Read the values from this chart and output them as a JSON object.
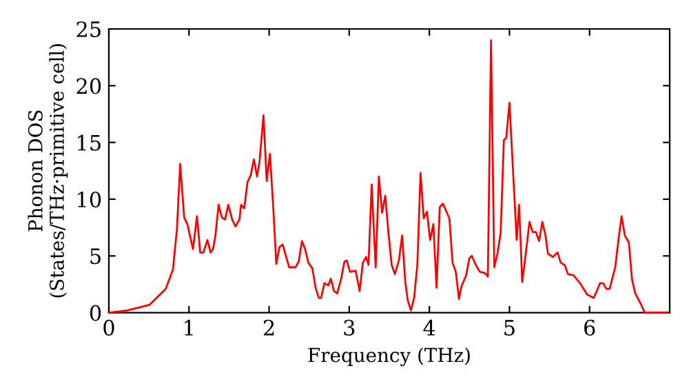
{
  "chart_data": {
    "type": "line",
    "xlabel": "Frequency (THz)",
    "ylabel": "Phonon DOS\n(States/THz·primitive cell)",
    "xlim": [
      0,
      7
    ],
    "ylim": [
      0,
      25
    ],
    "xticks": [
      0,
      1,
      2,
      3,
      4,
      5,
      6
    ],
    "yticks": [
      0,
      5,
      10,
      15,
      20,
      25
    ],
    "grid": false,
    "legend": false,
    "marker": "none",
    "line_style": "solid",
    "series": [
      {
        "color": "#ff0000",
        "x": [
          0,
          0.23,
          0.51,
          0.71,
          0.8,
          0.85,
          0.89,
          0.94,
          0.98,
          1.05,
          1.1,
          1.14,
          1.18,
          1.23,
          1.27,
          1.3,
          1.33,
          1.37,
          1.41,
          1.45,
          1.49,
          1.54,
          1.58,
          1.63,
          1.65,
          1.69,
          1.73,
          1.77,
          1.81,
          1.85,
          1.88,
          1.93,
          1.97,
          2.01,
          2.05,
          2.09,
          2.13,
          2.17,
          2.25,
          2.33,
          2.37,
          2.41,
          2.45,
          2.49,
          2.54,
          2.58,
          2.62,
          2.65,
          2.69,
          2.74,
          2.77,
          2.81,
          2.85,
          2.9,
          2.94,
          2.97,
          3.01,
          3.08,
          3.13,
          3.17,
          3.21,
          3.24,
          3.28,
          3.33,
          3.37,
          3.41,
          3.45,
          3.49,
          3.53,
          3.57,
          3.62,
          3.66,
          3.7,
          3.73,
          3.77,
          3.81,
          3.85,
          3.89,
          3.93,
          3.97,
          4.01,
          4.05,
          4.09,
          4.13,
          4.17,
          4.25,
          4.29,
          4.33,
          4.37,
          4.4,
          4.46,
          4.5,
          4.53,
          4.58,
          4.63,
          4.69,
          4.73,
          4.77,
          4.81,
          4.85,
          4.89,
          4.93,
          4.96,
          5.0,
          5.04,
          5.09,
          5.12,
          5.16,
          5.2,
          5.25,
          5.29,
          5.33,
          5.37,
          5.41,
          5.45,
          5.48,
          5.54,
          5.6,
          5.64,
          5.69,
          5.73,
          5.8,
          5.89,
          5.97,
          6.05,
          6.09,
          6.13,
          6.17,
          6.21,
          6.25,
          6.32,
          6.36,
          6.4,
          6.44,
          6.49,
          6.53,
          6.57,
          6.63,
          6.69,
          6.97
        ],
        "values": [
          0,
          0.2,
          0.7,
          2.1,
          3.8,
          7.4,
          13.1,
          8.4,
          7.8,
          5.6,
          8.5,
          5.3,
          5.3,
          6.4,
          5.3,
          5.6,
          6.8,
          9.5,
          8.4,
          8.2,
          9.5,
          8.2,
          7.6,
          8.2,
          9.5,
          9.2,
          11.5,
          12.1,
          13.5,
          12,
          13.3,
          17.4,
          11.6,
          14,
          9.5,
          4.3,
          5.8,
          6,
          4,
          4,
          4.5,
          6.3,
          5.6,
          4.4,
          3.9,
          2.2,
          1.3,
          1.3,
          2.6,
          2.4,
          3.0,
          1.9,
          1.7,
          3.0,
          4.5,
          4.6,
          3.6,
          3.7,
          1.9,
          4.4,
          4.9,
          4.2,
          11.3,
          4.0,
          12.0,
          8.8,
          10.3,
          7.0,
          4.2,
          3.4,
          4.6,
          6.8,
          2.7,
          1.1,
          0.2,
          1.3,
          4.2,
          12.3,
          8.3,
          8.9,
          6.4,
          7.8,
          2.2,
          9.3,
          9.6,
          8.3,
          4.4,
          3.6,
          1.2,
          2.3,
          3.3,
          4.8,
          5.0,
          4.2,
          3.6,
          3.5,
          3.2,
          24.0,
          4.0,
          5.2,
          7.0,
          15.2,
          15.4,
          18.5,
          13.1,
          6.4,
          9.5,
          2.7,
          5.0,
          8.0,
          7.1,
          7.1,
          6.3,
          8.0,
          6.8,
          5.2,
          4.9,
          5.3,
          4.4,
          4.2,
          3.4,
          3.3,
          2.5,
          1.6,
          1.3,
          1.9,
          2.6,
          2.6,
          2.1,
          2.1,
          4.0,
          6.4,
          8.5,
          6.8,
          6.2,
          2.9,
          1.7,
          0.9,
          0,
          0
        ]
      }
    ]
  }
}
